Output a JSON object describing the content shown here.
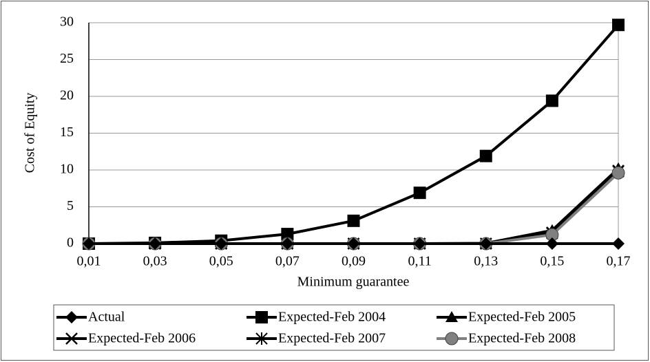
{
  "chart_data": {
    "type": "line",
    "x_label": "Minimum guarantee",
    "y_label": "Cost of Equity",
    "categories": [
      "0,01",
      "0,03",
      "0,05",
      "0,07",
      "0,09",
      "0,11",
      "0,13",
      "0,15",
      "0,17"
    ],
    "ylim": [
      0,
      30
    ],
    "yticks": [
      0,
      5,
      10,
      15,
      20,
      25,
      30
    ],
    "grid": true,
    "legend": "bottom",
    "series": [
      {
        "name": "Actual",
        "color": "#000000",
        "marker": "diamond",
        "values": [
          0,
          0,
          0,
          0,
          0,
          0,
          0,
          0,
          0
        ]
      },
      {
        "name": "Expected-Feb 2004",
        "color": "#000000",
        "marker": "square",
        "values": [
          0,
          0.1,
          0.4,
          1.3,
          3.1,
          6.9,
          11.9,
          19.4,
          29.7
        ]
      },
      {
        "name": "Expected-Feb 2005",
        "color": "#000000",
        "marker": "triangle",
        "values": [
          0,
          0,
          0,
          0,
          0,
          0,
          0.05,
          1.8,
          10.2
        ]
      },
      {
        "name": "Expected-Feb 2006",
        "color": "#000000",
        "marker": "x",
        "values": [
          0,
          0,
          0,
          0,
          0,
          0,
          0,
          1.5,
          9.9
        ]
      },
      {
        "name": "Expected-Feb 2007",
        "color": "#000000",
        "marker": "asterisk",
        "values": [
          0,
          0,
          0,
          0,
          0,
          0,
          0,
          1.4,
          9.8
        ]
      },
      {
        "name": "Expected-Feb 2008",
        "color": "#808080",
        "marker": "circle",
        "values": [
          0,
          0,
          0,
          0,
          0,
          0,
          0,
          1.2,
          9.6
        ]
      }
    ]
  }
}
